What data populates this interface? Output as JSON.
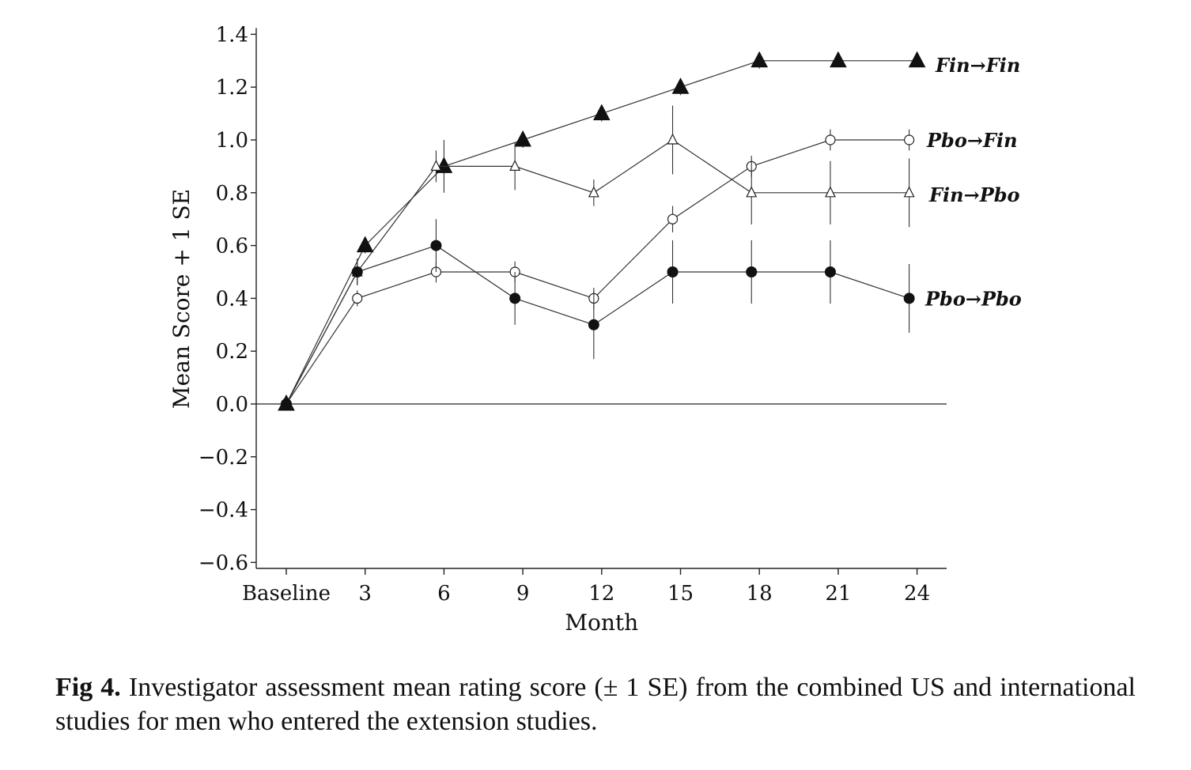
{
  "caption": {
    "label": "Fig 4.",
    "text": "Investigator assessment mean rating score (± 1 SE) from the combined US and international studies for men who entered the extension studies."
  },
  "chart_data": {
    "type": "line",
    "title": "",
    "xlabel": "Month",
    "ylabel": "Mean Score + 1 SE",
    "categories": [
      "Baseline",
      "3",
      "6",
      "9",
      "12",
      "15",
      "18",
      "21",
      "24"
    ],
    "ylim": [
      -0.6,
      1.4
    ],
    "yticks": [
      1.4,
      1.2,
      1.0,
      0.8,
      0.6,
      0.4,
      0.2,
      0.0,
      -0.2,
      -0.4,
      -0.6
    ],
    "ytick_labels": [
      "1.4",
      "1.2",
      "1.0",
      "0.8",
      "0.6",
      "0.4",
      "0.2",
      "0.0",
      "−0.2",
      "−0.4",
      "−0.6"
    ],
    "grid": false,
    "reference_line": 0.0,
    "series": [
      {
        "name": "Fin→Fin",
        "marker": "filled-triangle",
        "x": [
          0,
          3,
          6,
          9,
          12,
          15,
          18,
          21,
          24
        ],
        "values": [
          0.0,
          0.6,
          0.9,
          1.0,
          1.1,
          1.2,
          1.3,
          1.3,
          1.3
        ],
        "se": [
          0.0,
          0.03,
          0.1,
          0.03,
          0.03,
          0.03,
          0.03,
          0.02,
          0.02
        ]
      },
      {
        "name": "Pbo→Fin",
        "marker": "open-circle",
        "x": [
          0,
          2.7,
          5.7,
          8.7,
          11.7,
          14.7,
          17.7,
          20.7,
          23.7
        ],
        "values": [
          0.0,
          0.4,
          0.5,
          0.5,
          0.4,
          0.7,
          0.9,
          1.0,
          1.0
        ],
        "se": [
          0.0,
          0.03,
          0.04,
          0.04,
          0.04,
          0.05,
          0.04,
          0.04,
          0.04
        ]
      },
      {
        "name": "Fin→Pbo",
        "marker": "open-triangle",
        "x": [
          0,
          2.7,
          5.7,
          8.7,
          11.7,
          14.7,
          17.7,
          20.7,
          23.7
        ],
        "values": [
          0.0,
          0.5,
          0.9,
          0.9,
          0.8,
          1.0,
          0.8,
          0.8,
          0.8
        ],
        "se": [
          0.0,
          0.05,
          0.06,
          0.09,
          0.05,
          0.13,
          0.12,
          0.12,
          0.13
        ]
      },
      {
        "name": "Pbo→Pbo",
        "marker": "filled-circle",
        "x": [
          0,
          2.7,
          5.7,
          8.7,
          11.7,
          14.7,
          17.7,
          20.7,
          23.7
        ],
        "values": [
          0.0,
          0.5,
          0.6,
          0.4,
          0.3,
          0.5,
          0.5,
          0.5,
          0.4
        ],
        "se": [
          0.0,
          0.05,
          0.1,
          0.1,
          0.13,
          0.12,
          0.12,
          0.12,
          0.13
        ]
      }
    ]
  }
}
